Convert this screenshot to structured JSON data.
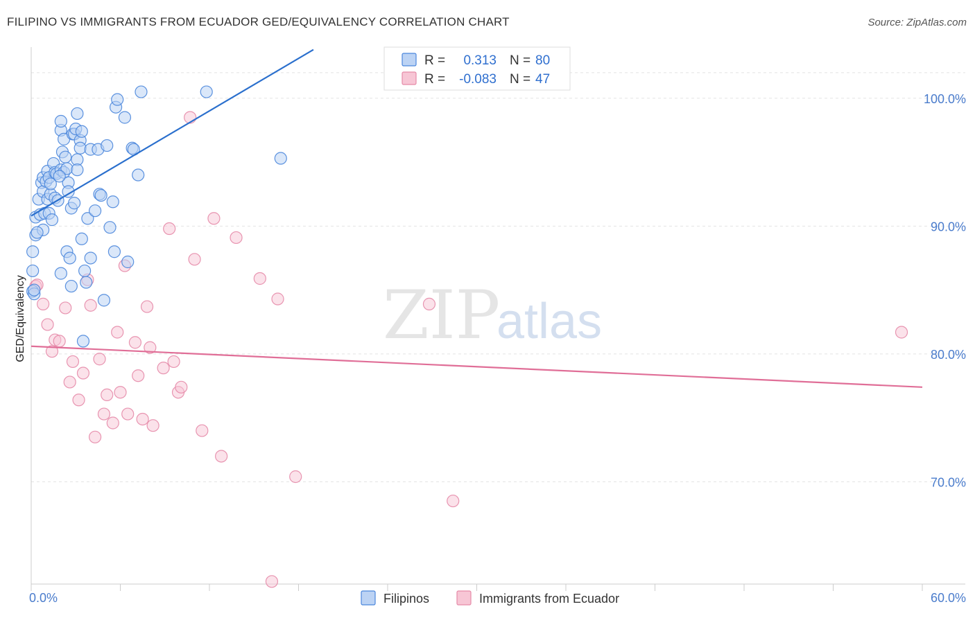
{
  "header": {
    "title": "FILIPINO VS IMMIGRANTS FROM ECUADOR GED/EQUIVALENCY CORRELATION CHART",
    "source": "Source: ZipAtlas.com"
  },
  "watermark": {
    "zip": "ZIP",
    "atlas": "atlas"
  },
  "colors": {
    "blue": "#4a86dc",
    "blue_fill": "#bcd3f4",
    "blue_line": "#2a6fcd",
    "pink": "#e68aa8",
    "pink_fill": "#f7c6d5",
    "pink_line": "#e06e97",
    "grid": "#e3e3e3",
    "tick_label": "#4a7ccc"
  },
  "legend": {
    "r_label": "R =",
    "n_label": "N =",
    "rows": [
      {
        "name": "Filipinos",
        "r": "0.313",
        "n": "80"
      },
      {
        "name": "Immigrants from Ecuador",
        "r": "-0.083",
        "n": "47"
      }
    ]
  },
  "chart_data": {
    "type": "scatter",
    "title": "FILIPINO VS IMMIGRANTS FROM ECUADOR GED/EQUIVALENCY CORRELATION CHART",
    "xlabel": "",
    "ylabel": "GED/Equivalency",
    "xlim": [
      0,
      60
    ],
    "ylim": [
      62,
      104
    ],
    "x_tick_labels": [
      "0.0%",
      "60.0%"
    ],
    "y_ticks": [
      70,
      80,
      90,
      100
    ],
    "y_tick_labels": [
      "70.0%",
      "80.0%",
      "90.0%",
      "100.0%"
    ],
    "legend_position": "top-center",
    "series": [
      {
        "name": "Filipinos",
        "color": "#4a86dc",
        "r": 0.313,
        "n": 80,
        "trend": {
          "x": [
            0,
            19
          ],
          "y": [
            90.8,
            103.8
          ]
        },
        "points": [
          [
            0.1,
            88.0
          ],
          [
            0.1,
            86.5
          ],
          [
            0.1,
            84.9
          ],
          [
            0.2,
            84.7
          ],
          [
            0.3,
            89.3
          ],
          [
            0.3,
            90.7
          ],
          [
            0.5,
            92.1
          ],
          [
            0.6,
            90.9
          ],
          [
            0.7,
            93.4
          ],
          [
            0.8,
            92.7
          ],
          [
            0.8,
            89.7
          ],
          [
            0.8,
            93.8
          ],
          [
            0.9,
            91.0
          ],
          [
            1.0,
            93.5
          ],
          [
            1.1,
            92.1
          ],
          [
            1.1,
            94.3
          ],
          [
            1.2,
            91.0
          ],
          [
            1.2,
            93.8
          ],
          [
            1.3,
            92.5
          ],
          [
            1.3,
            93.3
          ],
          [
            1.4,
            90.5
          ],
          [
            1.5,
            94.9
          ],
          [
            1.6,
            92.2
          ],
          [
            1.6,
            94.2
          ],
          [
            1.7,
            94.1
          ],
          [
            1.8,
            92.0
          ],
          [
            2.0,
            94.4
          ],
          [
            2.0,
            86.3
          ],
          [
            2.0,
            97.5
          ],
          [
            2.0,
            98.2
          ],
          [
            2.1,
            95.8
          ],
          [
            2.2,
            96.8
          ],
          [
            2.2,
            94.2
          ],
          [
            2.3,
            95.4
          ],
          [
            2.4,
            88.0
          ],
          [
            2.4,
            94.5
          ],
          [
            2.5,
            93.4
          ],
          [
            2.5,
            92.7
          ],
          [
            2.6,
            87.5
          ],
          [
            2.7,
            85.3
          ],
          [
            2.7,
            91.4
          ],
          [
            2.8,
            97.2
          ],
          [
            2.9,
            97.2
          ],
          [
            3.0,
            97.6
          ],
          [
            3.1,
            98.8
          ],
          [
            3.1,
            95.2
          ],
          [
            3.1,
            94.4
          ],
          [
            3.3,
            96.7
          ],
          [
            3.3,
            96.1
          ],
          [
            3.4,
            97.4
          ],
          [
            3.4,
            89.0
          ],
          [
            3.5,
            81.0
          ],
          [
            3.6,
            86.5
          ],
          [
            3.7,
            85.6
          ],
          [
            3.8,
            90.6
          ],
          [
            4.0,
            96.0
          ],
          [
            4.0,
            87.5
          ],
          [
            4.3,
            91.2
          ],
          [
            4.5,
            96.0
          ],
          [
            4.6,
            92.5
          ],
          [
            4.7,
            92.4
          ],
          [
            4.9,
            84.2
          ],
          [
            5.1,
            96.3
          ],
          [
            5.3,
            89.9
          ],
          [
            5.5,
            91.9
          ],
          [
            5.6,
            88.0
          ],
          [
            5.7,
            99.3
          ],
          [
            5.8,
            99.9
          ],
          [
            6.3,
            98.5
          ],
          [
            6.5,
            87.2
          ],
          [
            6.8,
            96.1
          ],
          [
            6.9,
            96.0
          ],
          [
            7.2,
            94.0
          ],
          [
            7.4,
            100.5
          ],
          [
            11.8,
            100.5
          ],
          [
            16.8,
            95.3
          ],
          [
            0.2,
            85.0
          ],
          [
            0.4,
            89.5
          ],
          [
            1.9,
            93.9
          ],
          [
            2.9,
            91.8
          ]
        ]
      },
      {
        "name": "Immigrants from Ecuador",
        "color": "#e68aa8",
        "r": -0.083,
        "n": 47,
        "trend": {
          "x": [
            0,
            60
          ],
          "y": [
            80.6,
            77.4
          ]
        },
        "points": [
          [
            0.3,
            85.3
          ],
          [
            0.8,
            83.9
          ],
          [
            1.1,
            82.3
          ],
          [
            1.4,
            80.2
          ],
          [
            1.6,
            81.1
          ],
          [
            1.9,
            81.0
          ],
          [
            2.3,
            83.6
          ],
          [
            2.6,
            77.8
          ],
          [
            2.8,
            79.4
          ],
          [
            3.2,
            76.4
          ],
          [
            3.5,
            78.5
          ],
          [
            3.8,
            85.8
          ],
          [
            4.0,
            83.8
          ],
          [
            4.3,
            73.5
          ],
          [
            4.6,
            79.6
          ],
          [
            4.9,
            75.3
          ],
          [
            5.1,
            76.8
          ],
          [
            5.5,
            74.6
          ],
          [
            5.8,
            81.7
          ],
          [
            6.0,
            77.0
          ],
          [
            6.3,
            86.9
          ],
          [
            6.5,
            75.3
          ],
          [
            7.0,
            80.9
          ],
          [
            7.2,
            78.3
          ],
          [
            7.5,
            74.9
          ],
          [
            7.8,
            83.7
          ],
          [
            8.0,
            80.5
          ],
          [
            8.2,
            74.4
          ],
          [
            8.9,
            78.9
          ],
          [
            9.3,
            89.8
          ],
          [
            9.6,
            79.4
          ],
          [
            9.9,
            77.0
          ],
          [
            10.1,
            77.4
          ],
          [
            10.7,
            98.5
          ],
          [
            11.0,
            87.4
          ],
          [
            11.5,
            74.0
          ],
          [
            12.3,
            90.6
          ],
          [
            12.8,
            72.0
          ],
          [
            13.8,
            89.1
          ],
          [
            15.4,
            85.9
          ],
          [
            16.2,
            62.2
          ],
          [
            16.6,
            84.3
          ],
          [
            17.8,
            70.4
          ],
          [
            26.8,
            83.9
          ],
          [
            28.4,
            68.5
          ],
          [
            58.6,
            81.7
          ],
          [
            0.4,
            85.4
          ]
        ]
      }
    ]
  }
}
